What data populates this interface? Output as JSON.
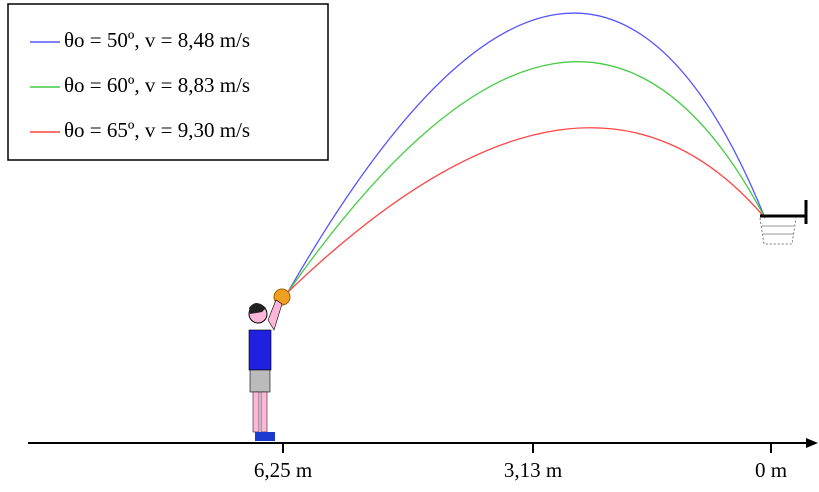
{
  "legend": [
    {
      "label": "θo = 50º, v = 8,48 m/s",
      "color": "#5555ff"
    },
    {
      "label": "θo = 60º, v = 8,83 m/s",
      "color": "#44cc44"
    },
    {
      "label": "θo = 65º, v = 9,30 m/s",
      "color": "#ff4444"
    }
  ],
  "axis": {
    "ticks": [
      "6,25 m",
      "3,13 m",
      "0 m"
    ]
  }
}
